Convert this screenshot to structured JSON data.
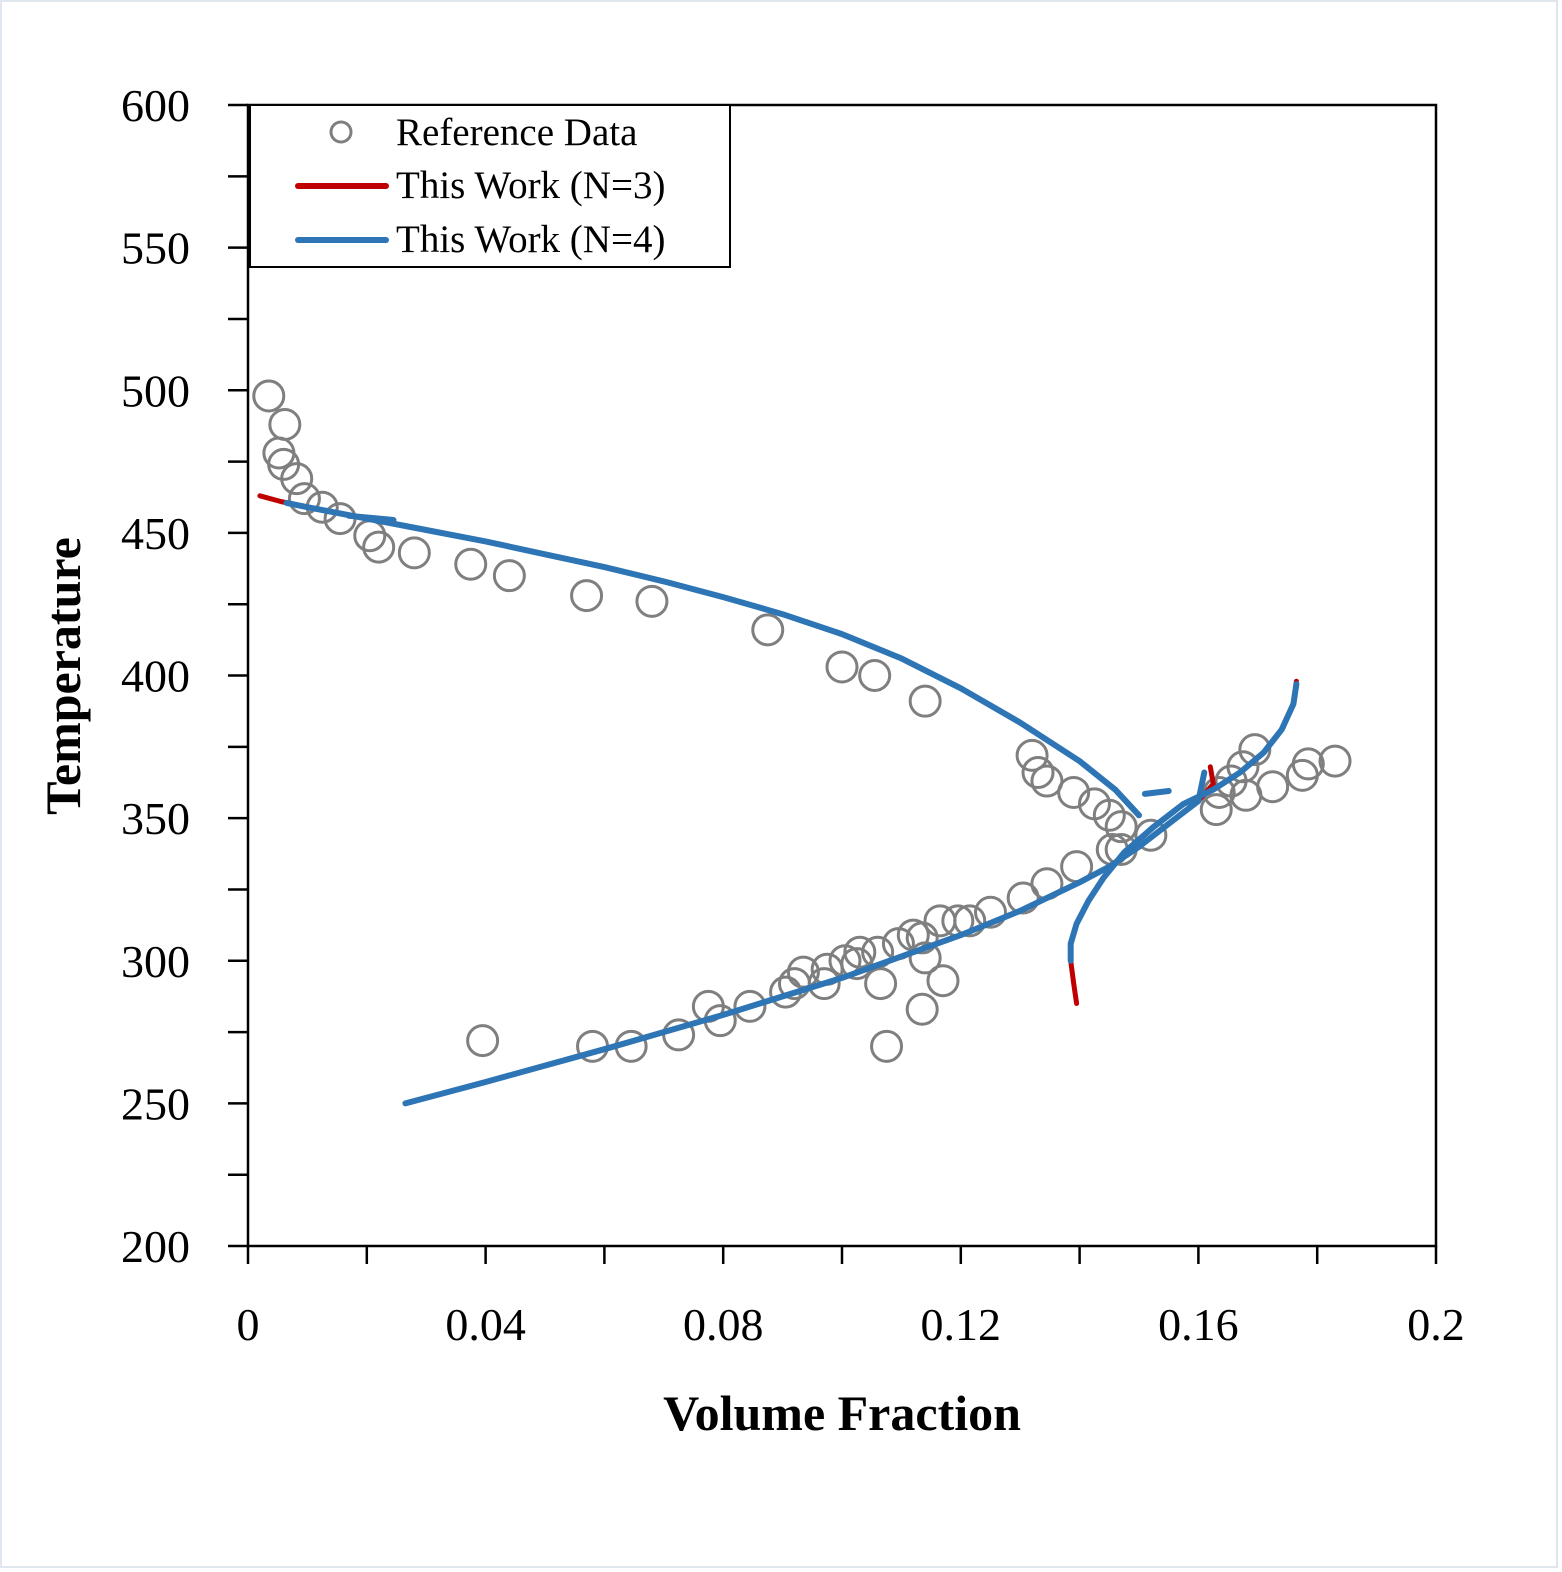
{
  "chart_data": {
    "type": "scatter",
    "xlabel": "Volume Fraction",
    "ylabel": "Temperature",
    "xlim": [
      0,
      0.2
    ],
    "ylim": [
      200,
      600
    ],
    "xticks": [
      "0",
      "0.04",
      "0.08",
      "0.12",
      "0.16",
      "0.2"
    ],
    "yticks": [
      "200",
      "250",
      "300",
      "350",
      "400",
      "450",
      "500",
      "550",
      "600"
    ],
    "grid": false,
    "legend_position": "top-left",
    "legend": [
      {
        "label": "Reference Data",
        "style": "circle-marker",
        "color": "#7f7f7f"
      },
      {
        "label": "This Work (N=3)",
        "style": "line",
        "color": "#c00000"
      },
      {
        "label": "This Work (N=4)",
        "style": "line",
        "color": "#2e75b6"
      }
    ],
    "series": [
      {
        "name": "Reference Data",
        "kind": "scatter",
        "color": "#7f7f7f",
        "points": [
          [
            0.0035,
            498
          ],
          [
            0.0062,
            488
          ],
          [
            0.0052,
            478
          ],
          [
            0.006,
            474
          ],
          [
            0.0082,
            469
          ],
          [
            0.0095,
            462
          ],
          [
            0.0125,
            459
          ],
          [
            0.0155,
            455
          ],
          [
            0.0205,
            449
          ],
          [
            0.022,
            445
          ],
          [
            0.028,
            443
          ],
          [
            0.0375,
            439
          ],
          [
            0.044,
            435
          ],
          [
            0.057,
            428
          ],
          [
            0.068,
            426
          ],
          [
            0.0875,
            416
          ],
          [
            0.1,
            403
          ],
          [
            0.1055,
            400
          ],
          [
            0.114,
            391
          ],
          [
            0.132,
            372
          ],
          [
            0.133,
            366
          ],
          [
            0.1345,
            363
          ],
          [
            0.139,
            359
          ],
          [
            0.1425,
            355
          ],
          [
            0.145,
            351
          ],
          [
            0.147,
            347
          ],
          [
            0.152,
            344
          ],
          [
            0.1455,
            339
          ],
          [
            0.147,
            339
          ],
          [
            0.1395,
            333
          ],
          [
            0.1345,
            327
          ],
          [
            0.1305,
            322
          ],
          [
            0.125,
            317
          ],
          [
            0.1215,
            314
          ],
          [
            0.1195,
            314
          ],
          [
            0.1165,
            314
          ],
          [
            0.1135,
            308
          ],
          [
            0.112,
            309
          ],
          [
            0.1095,
            306
          ],
          [
            0.106,
            303
          ],
          [
            0.103,
            303
          ],
          [
            0.1025,
            299
          ],
          [
            0.1005,
            300
          ],
          [
            0.0975,
            297
          ],
          [
            0.097,
            292
          ],
          [
            0.0935,
            296
          ],
          [
            0.092,
            292
          ],
          [
            0.0905,
            289
          ],
          [
            0.0775,
            284
          ],
          [
            0.0845,
            284
          ],
          [
            0.0795,
            279
          ],
          [
            0.0725,
            274
          ],
          [
            0.0645,
            270
          ],
          [
            0.058,
            270
          ],
          [
            0.0395,
            272
          ],
          [
            0.1075,
            270
          ],
          [
            0.1135,
            283
          ],
          [
            0.117,
            293
          ],
          [
            0.1065,
            292
          ],
          [
            0.114,
            301
          ],
          [
            0.163,
            353
          ],
          [
            0.1635,
            359
          ],
          [
            0.1655,
            363
          ],
          [
            0.1675,
            368
          ],
          [
            0.1695,
            374
          ],
          [
            0.168,
            358
          ],
          [
            0.1725,
            361
          ],
          [
            0.1775,
            365
          ],
          [
            0.1785,
            369
          ],
          [
            0.183,
            370
          ]
        ]
      },
      {
        "name": "This Work (N=3)",
        "kind": "line",
        "color": "#c00000",
        "segments": [
          [
            [
              0.002,
              463
            ],
            [
              0.0055,
              461
            ],
            [
              0.01,
              459
            ],
            [
              0.02,
              455
            ],
            [
              0.03,
              451
            ],
            [
              0.04,
              447
            ],
            [
              0.05,
              442.5
            ],
            [
              0.06,
              438
            ],
            [
              0.07,
              433
            ],
            [
              0.08,
              427.5
            ],
            [
              0.09,
              421.5
            ],
            [
              0.1,
              414.5
            ],
            [
              0.11,
              406
            ],
            [
              0.12,
              395.5
            ],
            [
              0.13,
              383.5
            ],
            [
              0.14,
              370
            ],
            [
              0.146,
              360
            ],
            [
              0.15,
              351
            ]
          ],
          [
            [
              0.0265,
              250
            ],
            [
              0.04,
              257.5
            ],
            [
              0.06,
              269
            ],
            [
              0.08,
              281
            ],
            [
              0.1,
              294
            ],
            [
              0.12,
              309
            ],
            [
              0.13,
              317.5
            ],
            [
              0.14,
              327.5
            ],
            [
              0.145,
              333
            ],
            [
              0.15,
              340
            ],
            [
              0.155,
              348
            ],
            [
              0.16,
              356
            ],
            [
              0.1625,
              362
            ],
            [
              0.162,
              368
            ]
          ],
          [
            [
              0.1395,
              285
            ],
            [
              0.139,
              292
            ],
            [
              0.1385,
              300
            ],
            [
              0.1385,
              306
            ],
            [
              0.1395,
              313
            ],
            [
              0.1415,
              321
            ],
            [
              0.144,
              329
            ],
            [
              0.1475,
              338
            ],
            [
              0.1525,
              347
            ],
            [
              0.1575,
              355
            ],
            [
              0.1625,
              360
            ],
            [
              0.167,
              366
            ],
            [
              0.171,
              373
            ],
            [
              0.174,
              381
            ],
            [
              0.176,
              390
            ],
            [
              0.1765,
              398
            ]
          ]
        ]
      },
      {
        "name": "This Work (N=4)",
        "kind": "line",
        "color": "#2e75b6",
        "segments": [
          [
            [
              0.0065,
              460.5
            ],
            [
              0.01,
              459
            ],
            [
              0.02,
              455
            ],
            [
              0.03,
              451
            ],
            [
              0.04,
              447
            ],
            [
              0.05,
              442.5
            ],
            [
              0.06,
              438
            ],
            [
              0.07,
              433
            ],
            [
              0.08,
              427.5
            ],
            [
              0.09,
              421.5
            ],
            [
              0.1,
              414.5
            ],
            [
              0.11,
              406
            ],
            [
              0.12,
              395.5
            ],
            [
              0.13,
              383.5
            ],
            [
              0.14,
              370
            ],
            [
              0.146,
              360
            ],
            [
              0.15,
              351
            ]
          ],
          [
            [
              0.0265,
              250
            ],
            [
              0.04,
              257.5
            ],
            [
              0.06,
              269
            ],
            [
              0.08,
              281
            ],
            [
              0.1,
              294
            ],
            [
              0.12,
              309
            ],
            [
              0.13,
              317.5
            ],
            [
              0.14,
              327.5
            ],
            [
              0.145,
              333
            ],
            [
              0.15,
              340
            ],
            [
              0.155,
              348
            ],
            [
              0.16,
              356
            ],
            [
              0.161,
              366
            ]
          ],
          [
            [
              0.1385,
              300
            ],
            [
              0.1385,
              306
            ],
            [
              0.1395,
              313
            ],
            [
              0.1415,
              321
            ],
            [
              0.144,
              329
            ],
            [
              0.1475,
              338
            ],
            [
              0.1525,
              347
            ],
            [
              0.1575,
              355
            ],
            [
              0.1625,
              360
            ],
            [
              0.167,
              366
            ],
            [
              0.171,
              373
            ],
            [
              0.174,
              381
            ],
            [
              0.176,
              390
            ],
            [
              0.1765,
              397
            ]
          ],
          [
            [
              0.017,
              456
            ],
            [
              0.0245,
              454.5
            ]
          ],
          [
            [
              0.151,
              358.5
            ],
            [
              0.155,
              359.5
            ]
          ]
        ]
      }
    ]
  }
}
